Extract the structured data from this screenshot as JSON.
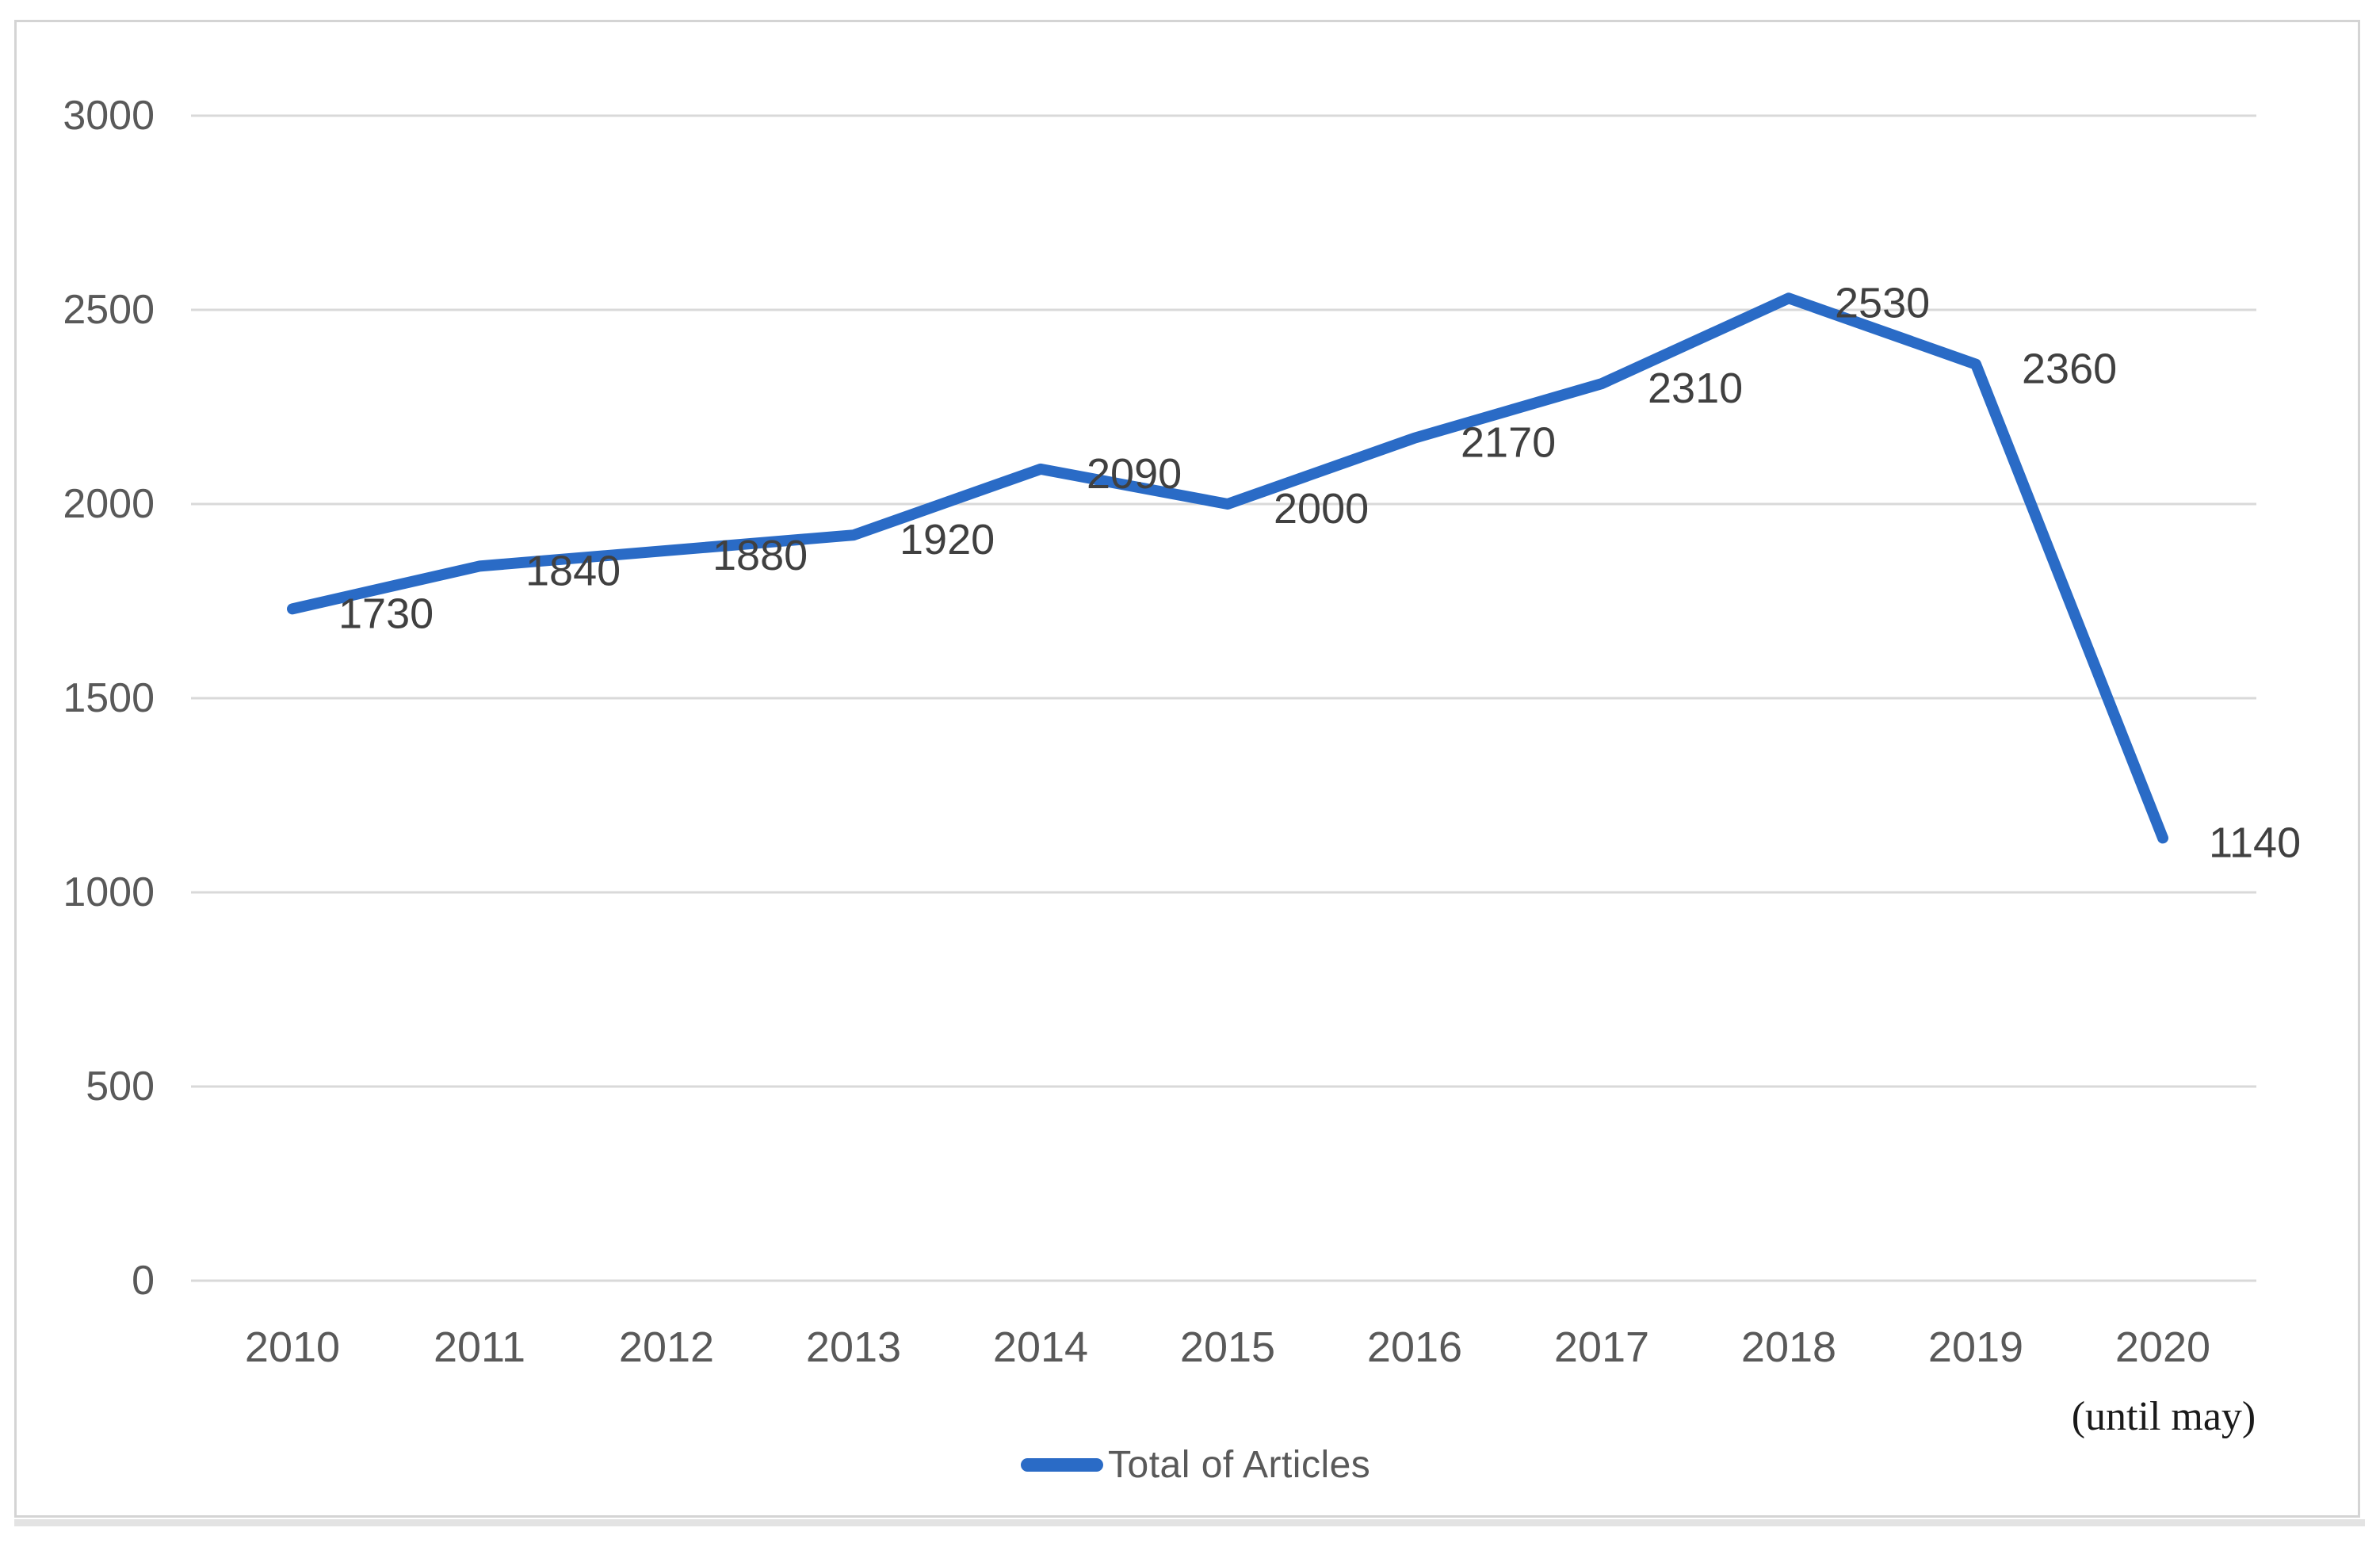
{
  "chart_data": {
    "type": "line",
    "title": "",
    "categories": [
      "2010",
      "2011",
      "2012",
      "2013",
      "2014",
      "2015",
      "2016",
      "2017",
      "2018",
      "2019",
      "2020"
    ],
    "series": [
      {
        "name": "Total of Articles",
        "values": [
          1730,
          1840,
          1880,
          1920,
          2090,
          2000,
          2170,
          2310,
          2530,
          2360,
          1140
        ],
        "color": "#2a6bc6"
      }
    ],
    "ylim": [
      0,
      3000
    ],
    "yticks": [
      0,
      500,
      1000,
      1500,
      2000,
      2500,
      3000
    ],
    "grid": true,
    "data_labels_visible": true,
    "data_label_position": "right",
    "legend_position": "bottom",
    "x_note": "(until may)"
  },
  "legend": {
    "label": "Total of Articles"
  },
  "colors": {
    "line": "#2a6bc6",
    "gridline": "#d9d9d9",
    "frame_border": "#d4d4d4",
    "axis_text": "#595959",
    "data_label_text": "#404040",
    "note_text": "#1a1a1a"
  }
}
